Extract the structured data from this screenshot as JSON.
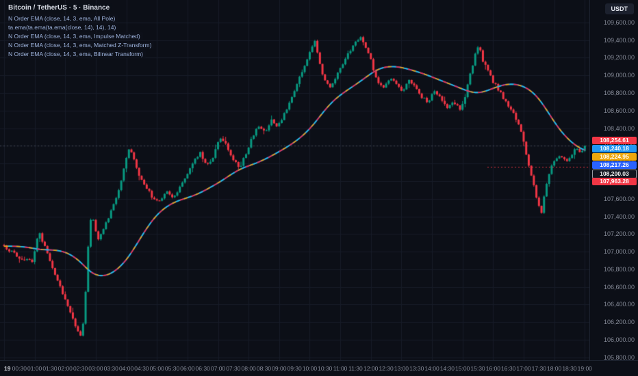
{
  "header": {
    "symbol_title": "Bitcoin / TetherUS · 5 · Binance",
    "quote_currency_button": "USDT",
    "indicators": [
      {
        "label": "N Order EMA (close, 14, 3, ema, All Pole)",
        "color": "#f23645"
      },
      {
        "label": "ta.ema(ta.ema(ta.ema(close, 14), 14), 14)",
        "color": "#eda70c"
      },
      {
        "label": "N Order EMA (close, 14, 3, ema, Impulse Matched)",
        "color": "#2962ff"
      },
      {
        "label": "N Order EMA (close, 14, 3, ema, Matched Z-Transform)",
        "color": "#26c6da"
      },
      {
        "label": "N Order EMA (close, 14, 3, ema, Bilinear Transform)",
        "color": "#b2b5be"
      }
    ]
  },
  "colors": {
    "background": "#0c0f17",
    "grid": "#171c28",
    "up": "#089981",
    "down": "#f23645",
    "axis_text": "#868b98",
    "ema_base": "#2962ff",
    "ema_dash1": "#eda70c",
    "ema_dash2": "#f23645",
    "ema_dash3": "#26c6da"
  },
  "price_axis": {
    "ticks": [
      105800,
      106000,
      106200,
      106400,
      106600,
      106800,
      107000,
      107200,
      107400,
      107600,
      107800,
      108000,
      108200,
      108400,
      108600,
      108800,
      109000,
      109200,
      109400,
      109600
    ],
    "badges": [
      {
        "label": "108,254.61",
        "value": 108254.61,
        "bg": "#f23645"
      },
      {
        "label": "108,240.18",
        "value": 108240.18,
        "bg": "#2196f3"
      },
      {
        "label": "108,224.95",
        "value": 108224.95,
        "bg": "#eda70c"
      },
      {
        "label": "108,217.26",
        "value": 108217.26,
        "bg": "#2962ff"
      },
      {
        "label": "108,200.03",
        "value": 108200.03,
        "bg": "#11151f",
        "border": "#9598a1",
        "dash_line": true,
        "line_color": "#8a909e",
        "line_span": "full"
      },
      {
        "label": "107,963.28",
        "value": 107963.28,
        "bg": "#f23645",
        "dash_line": true,
        "line_color": "#f23645",
        "line_span": "short"
      }
    ]
  },
  "time_axis": {
    "step_minutes": 30,
    "labels": [
      "19",
      "00:30",
      "01:00",
      "01:30",
      "02:00",
      "02:30",
      "03:00",
      "03:30",
      "04:00",
      "04:30",
      "05:00",
      "05:30",
      "06:00",
      "06:30",
      "07:00",
      "07:30",
      "08:00",
      "08:30",
      "09:00",
      "09:30",
      "10:00",
      "10:30",
      "11:00",
      "11:30",
      "12:00",
      "12:30",
      "13:00",
      "13:30",
      "14:00",
      "14:30",
      "15:00",
      "15:30",
      "16:00",
      "16:30",
      "17:00",
      "17:30",
      "18:00",
      "18:30",
      "19:00"
    ]
  },
  "chart_data": {
    "type": "candlestick",
    "title": "Bitcoin / TetherUS · 5 · Binance",
    "symbol": "BTC/USDT",
    "interval_minutes": 5,
    "last_price": 108200.03,
    "ylim": [
      105760,
      109855
    ],
    "xlim_minutes": [
      0,
      1145
    ],
    "legend_position": "top-left",
    "grid": true,
    "close_path_anchors": [
      [
        0,
        107060
      ],
      [
        25,
        106950
      ],
      [
        55,
        106880
      ],
      [
        68,
        107230
      ],
      [
        80,
        107050
      ],
      [
        95,
        106820
      ],
      [
        110,
        106600
      ],
      [
        125,
        106380
      ],
      [
        140,
        106170
      ],
      [
        152,
        106030
      ],
      [
        158,
        106320
      ],
      [
        166,
        107180
      ],
      [
        172,
        107430
      ],
      [
        184,
        107140
      ],
      [
        198,
        107290
      ],
      [
        214,
        107520
      ],
      [
        230,
        107790
      ],
      [
        244,
        108170
      ],
      [
        252,
        108100
      ],
      [
        264,
        107890
      ],
      [
        278,
        107740
      ],
      [
        292,
        107610
      ],
      [
        306,
        107560
      ],
      [
        318,
        107700
      ],
      [
        332,
        107610
      ],
      [
        344,
        107730
      ],
      [
        358,
        107870
      ],
      [
        372,
        108010
      ],
      [
        384,
        108130
      ],
      [
        398,
        107970
      ],
      [
        410,
        108070
      ],
      [
        424,
        108290
      ],
      [
        438,
        108190
      ],
      [
        450,
        108040
      ],
      [
        462,
        107950
      ],
      [
        476,
        108130
      ],
      [
        488,
        108310
      ],
      [
        500,
        108430
      ],
      [
        512,
        108350
      ],
      [
        524,
        108500
      ],
      [
        538,
        108420
      ],
      [
        550,
        108570
      ],
      [
        562,
        108710
      ],
      [
        575,
        108910
      ],
      [
        588,
        109090
      ],
      [
        600,
        109250
      ],
      [
        610,
        109390
      ],
      [
        618,
        109170
      ],
      [
        628,
        108950
      ],
      [
        640,
        108860
      ],
      [
        652,
        108990
      ],
      [
        665,
        109130
      ],
      [
        678,
        109270
      ],
      [
        690,
        109370
      ],
      [
        702,
        109430
      ],
      [
        712,
        109290
      ],
      [
        722,
        109140
      ],
      [
        732,
        108920
      ],
      [
        745,
        108860
      ],
      [
        758,
        108990
      ],
      [
        770,
        108900
      ],
      [
        782,
        108820
      ],
      [
        795,
        108950
      ],
      [
        808,
        108860
      ],
      [
        820,
        108760
      ],
      [
        832,
        108700
      ],
      [
        845,
        108830
      ],
      [
        858,
        108740
      ],
      [
        870,
        108640
      ],
      [
        882,
        108710
      ],
      [
        895,
        108600
      ],
      [
        905,
        108770
      ],
      [
        915,
        109010
      ],
      [
        925,
        109230
      ],
      [
        932,
        109330
      ],
      [
        940,
        109170
      ],
      [
        950,
        109050
      ],
      [
        960,
        108930
      ],
      [
        972,
        108820
      ],
      [
        985,
        108700
      ],
      [
        998,
        108580
      ],
      [
        1008,
        108470
      ],
      [
        1018,
        108290
      ],
      [
        1028,
        108040
      ],
      [
        1038,
        107790
      ],
      [
        1048,
        107550
      ],
      [
        1055,
        107450
      ],
      [
        1062,
        107700
      ],
      [
        1072,
        107930
      ],
      [
        1082,
        108030
      ],
      [
        1092,
        108110
      ],
      [
        1102,
        108020
      ],
      [
        1112,
        108090
      ],
      [
        1122,
        108170
      ],
      [
        1132,
        108100
      ],
      [
        1140,
        108200
      ]
    ],
    "overlays": [
      {
        "name": "N Order EMA (close, 14, 3, ema, All Pole)",
        "color": "#f23645",
        "value": 108254.61
      },
      {
        "name": "ta.ema(ta.ema(ta.ema(close, 14), 14), 14)",
        "color": "#eda70c",
        "value": 108224.95
      },
      {
        "name": "N Order EMA (close, 14, 3, ema, Impulse Matched)",
        "color": "#2962ff",
        "value": 108217.26
      },
      {
        "name": "N Order EMA (close, 14, 3, ema, Matched Z-Transform)",
        "color": "#26c6da",
        "value": 108240.18
      },
      {
        "name": "N Order EMA (close, 14, 3, ema, Bilinear Transform)",
        "color": "#f23645",
        "value": 107963.28
      }
    ]
  }
}
